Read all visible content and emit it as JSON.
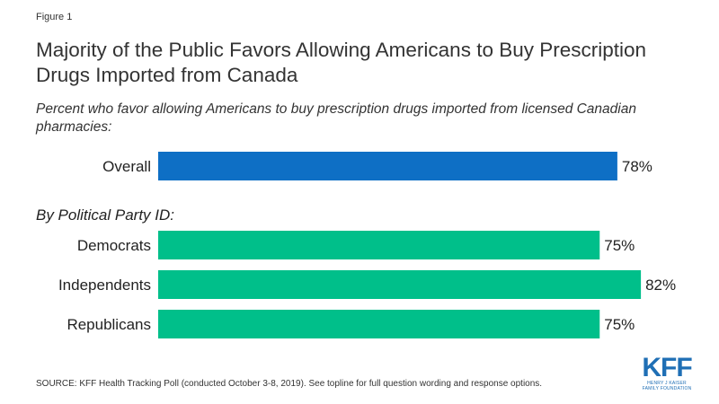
{
  "figure_label": "Figure 1",
  "title": "Majority of the Public Favors Allowing Americans to Buy Prescription Drugs Imported from Canada",
  "subtitle": "Percent who favor allowing Americans to buy prescription drugs imported from licensed Canadian pharmacies:",
  "group_label": "By Political Party ID:",
  "source": "SOURCE: KFF Health Tracking Poll (conducted October 3-8, 2019). See topline for full question wording and response options.",
  "logo": {
    "mark": "KFF",
    "line1": "HENRY J KAISER",
    "line2": "FAMILY FOUNDATION"
  },
  "colors": {
    "overall": "#0e6fc5",
    "party": "#00bf8a",
    "logo": "#1f6fb5"
  },
  "chart_data": {
    "type": "bar",
    "orientation": "horizontal",
    "categories": [
      "Overall",
      "Democrats",
      "Independents",
      "Republicans"
    ],
    "values": [
      78,
      75,
      82,
      75
    ],
    "value_labels": [
      "78%",
      "75%",
      "82%",
      "75%"
    ],
    "unit": "%",
    "xlim": [
      0,
      100
    ],
    "grid": false,
    "legend": "none"
  }
}
